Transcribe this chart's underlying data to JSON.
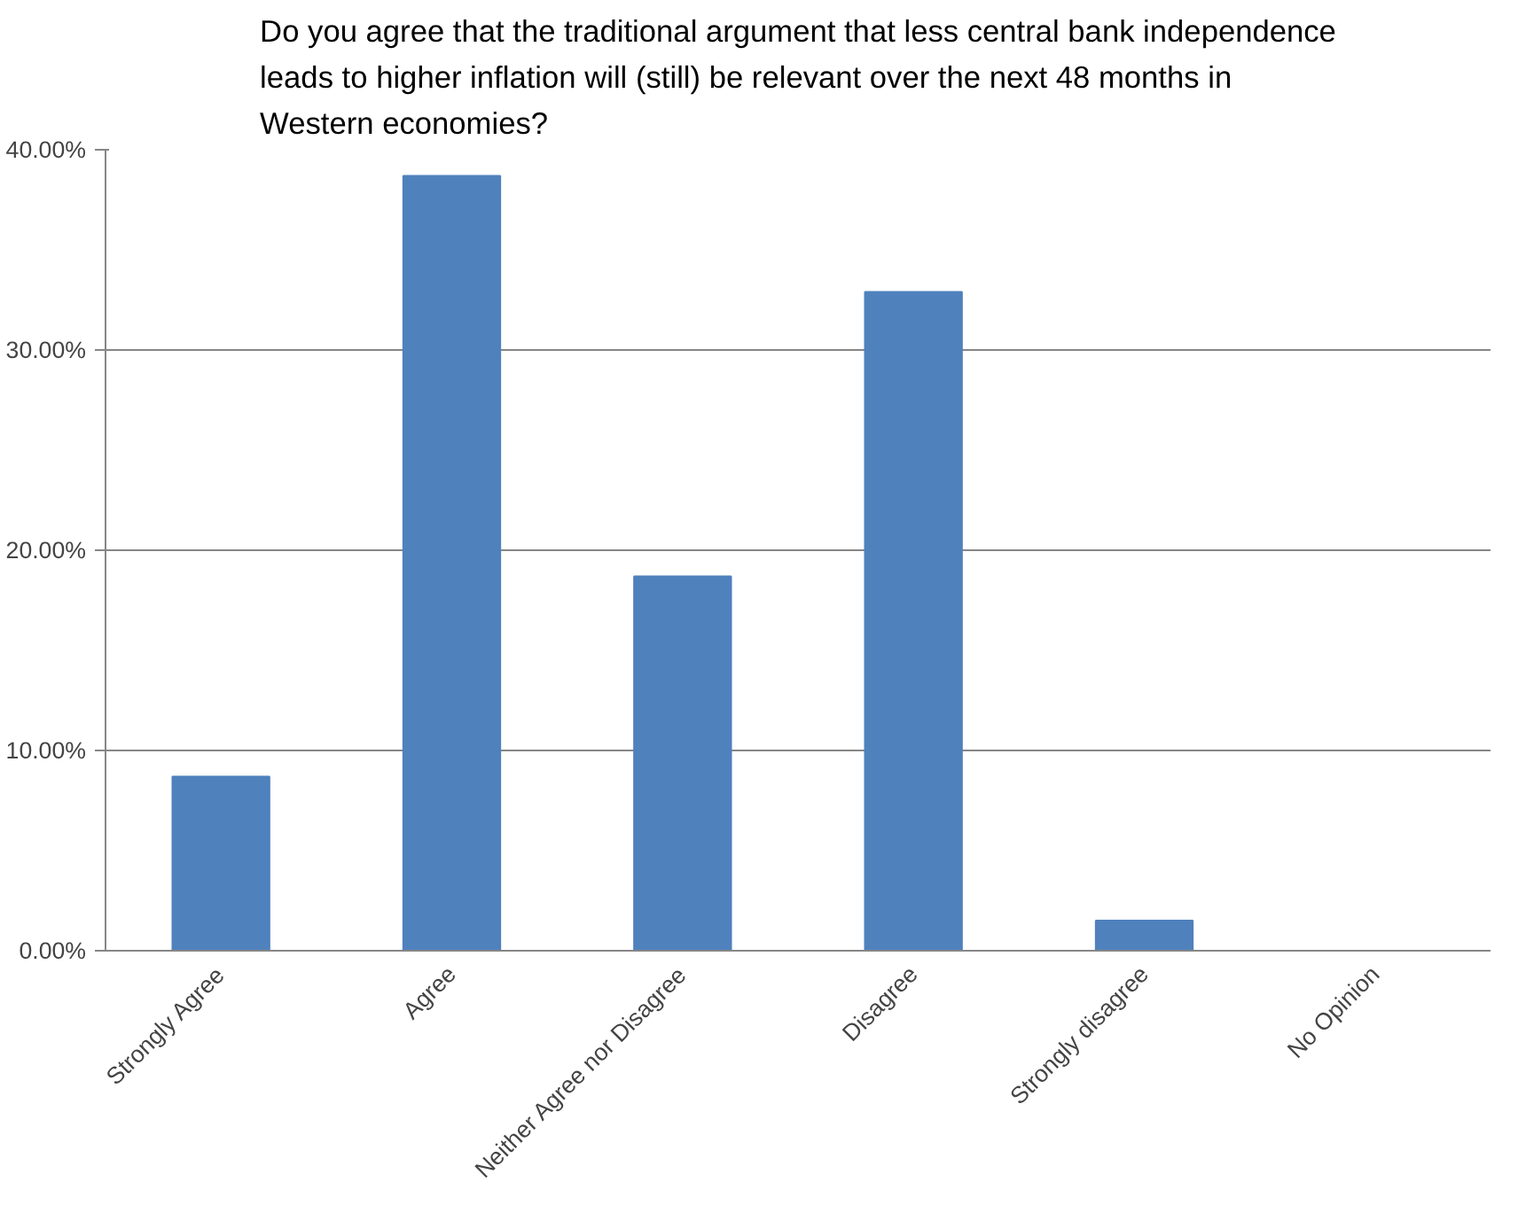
{
  "chart_data": {
    "type": "bar",
    "title": "Do you agree that the traditional argument that less central bank independence leads to higher inflation will (still) be relevant over the next 48 months in Western economies?",
    "categories": [
      "Strongly Agree",
      "Agree",
      "Neither Agree nor Disagree",
      "Disagree",
      "Strongly disagree",
      "No Opinion"
    ],
    "values": [
      8.7,
      38.7,
      18.7,
      32.9,
      1.5,
      0
    ],
    "color": "#4f81bd",
    "ylim": [
      0,
      40
    ],
    "yticks": [
      {
        "value": 0,
        "label": "0.00%"
      },
      {
        "value": 10,
        "label": "10.00%"
      },
      {
        "value": 20,
        "label": "20.00%"
      },
      {
        "value": 30,
        "label": "30.00%"
      },
      {
        "value": 40,
        "label": "40.00%"
      }
    ],
    "grid": "y"
  }
}
